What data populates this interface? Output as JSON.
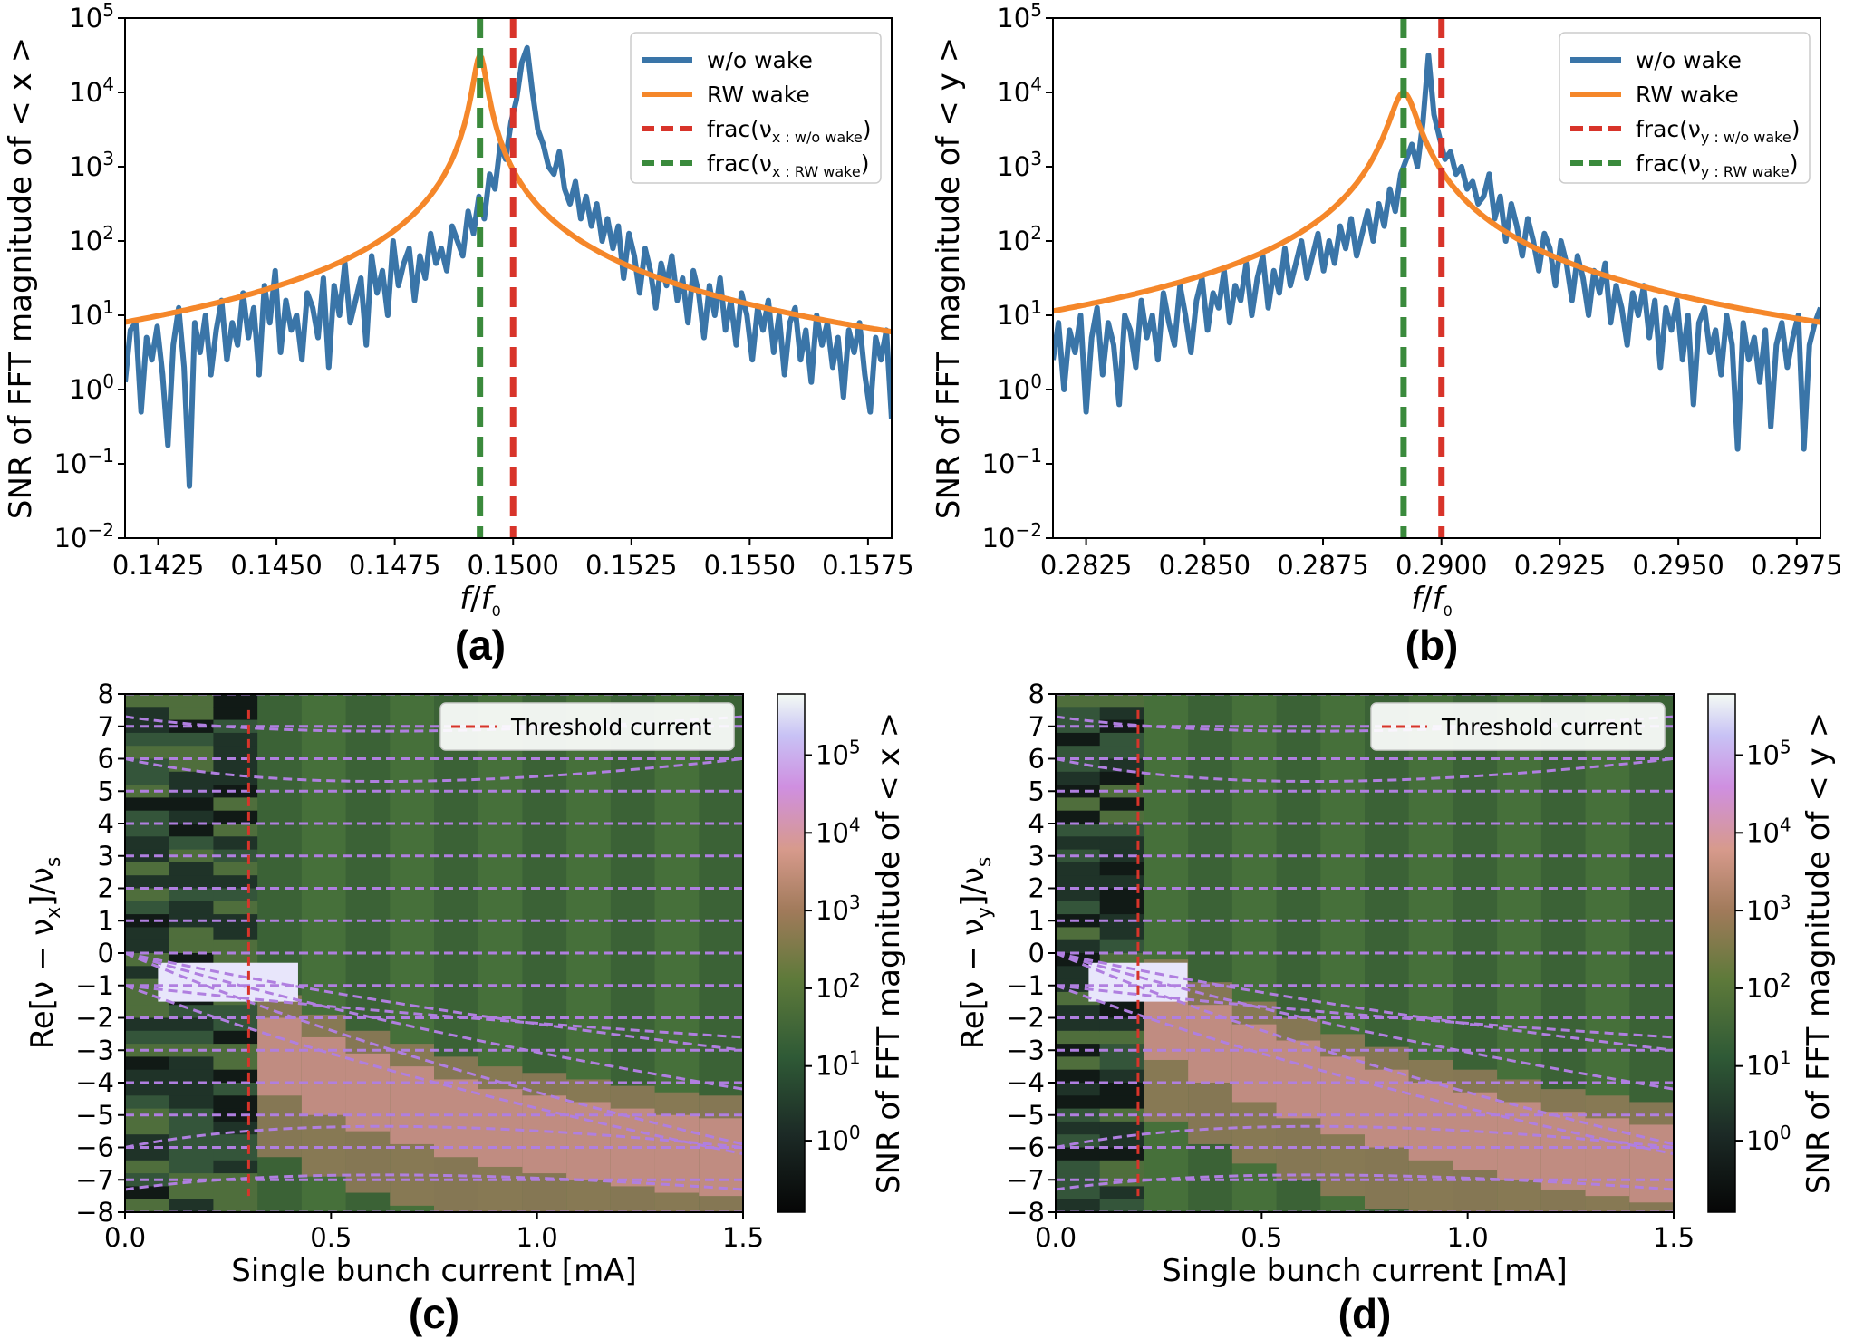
{
  "chart_data": [
    {
      "panel": "a",
      "panel_label": "(a)",
      "type": "line",
      "xlabel_main": "f",
      "xlabel_sub": "0",
      "ylabel": "SNR of FFT magnitude of  < x >",
      "yscale": "log",
      "xlim": [
        0.1418,
        0.158
      ],
      "ylim_exp": [
        -2,
        5
      ],
      "xticks": [
        "0.1425",
        "0.1450",
        "0.1475",
        "0.1500",
        "0.1525",
        "0.1550",
        "0.1575"
      ],
      "xtick_values": [
        0.1425,
        0.145,
        0.1475,
        0.15,
        0.1525,
        0.155,
        0.1575
      ],
      "yticks": [
        "-2",
        "-1",
        "0",
        "1",
        "2",
        "3",
        "4",
        "5"
      ],
      "series": [
        {
          "name": "w/o wake",
          "color": "#3a75a8",
          "peak": 0.15,
          "peak_log": 4.6,
          "noise_log": [
            0.1,
            0.8,
            0.9,
            -0.3,
            0.7,
            0.4,
            0.85,
            0.2,
            -0.75,
            0.6,
            1.1,
            0.3,
            -1.3,
            0.9,
            0.5,
            1.0,
            0.2,
            0.8,
            1.2,
            0.4,
            0.9,
            0.6,
            1.3,
            0.7,
            1.1,
            0.2,
            1.4,
            0.9,
            1.6,
            0.5,
            1.2,
            0.8,
            1.0,
            0.4,
            1.3,
            1.1,
            0.7,
            1.5,
            0.3,
            1.4,
            1.0,
            1.7,
            0.9,
            1.2,
            1.5,
            0.6,
            1.8,
            1.3,
            1.6,
            1.0,
            2.0,
            1.4,
            1.7,
            1.9,
            1.2,
            1.8,
            1.5,
            2.1,
            1.7,
            1.9,
            1.6,
            2.2,
            2.0,
            1.8,
            2.4,
            2.1,
            2.6,
            2.3,
            2.9,
            2.7,
            3.3,
            3.1,
            3.6,
            3.9,
            4.4,
            4.6,
            4.0,
            3.5,
            3.3,
            3.0,
            2.9,
            3.2,
            2.7,
            2.5,
            2.8,
            2.3,
            2.6,
            2.2,
            2.5,
            2.0,
            2.3,
            1.9,
            2.2,
            1.5,
            2.1,
            1.8,
            1.3,
            1.9,
            1.6,
            1.1,
            1.7,
            1.4,
            1.8,
            1.2,
            1.5,
            0.9,
            1.6,
            1.3,
            0.7,
            1.4,
            1.0,
            1.5,
            0.8,
            1.2,
            0.6,
            1.3,
            1.0,
            0.4,
            1.1,
            0.8,
            1.2,
            0.5,
            1.0,
            0.2,
            0.9,
            1.1,
            0.4,
            0.8,
            0.1,
            1.0,
            0.6,
            0.9,
            0.3,
            0.7,
            -0.1,
            0.8,
            0.5,
            0.9,
            0.2,
            -0.3,
            0.7,
            0.4,
            0.8,
            -0.4
          ]
        },
        {
          "name": "RW wake",
          "color": "#f5872a",
          "peak": 0.1493,
          "peak_log": 4.5,
          "width": 0.00012
        }
      ],
      "vlines": [
        {
          "name": "frac(ν_x : w/o wake)",
          "value": 0.15,
          "color": "#d8342a"
        },
        {
          "name": "frac(ν_x : RW wake)",
          "value": 0.1493,
          "color": "#3a8a3c"
        }
      ],
      "legend": [
        {
          "text": "w/o wake",
          "sub": ""
        },
        {
          "text": "RW wake",
          "sub": ""
        },
        {
          "text": "frac(ν",
          "sub": "x : w/o wake",
          "close": ")"
        },
        {
          "text": "frac(ν",
          "sub": "x : RW wake",
          "close": ")"
        }
      ],
      "legend_loc": "upper right"
    },
    {
      "panel": "b",
      "panel_label": "(b)",
      "type": "line",
      "xlabel_main": "f",
      "xlabel_sub": "0",
      "ylabel": "SNR of FFT magnitude of  < y >",
      "yscale": "log",
      "xlim": [
        0.2818,
        0.298
      ],
      "ylim_exp": [
        -2,
        5
      ],
      "xticks": [
        "0.2825",
        "0.2850",
        "0.2875",
        "0.2900",
        "0.2925",
        "0.2950",
        "0.2975"
      ],
      "xtick_values": [
        0.2825,
        0.285,
        0.2875,
        0.29,
        0.2925,
        0.295,
        0.2975
      ],
      "yticks": [
        "-2",
        "-1",
        "0",
        "1",
        "2",
        "3",
        "4",
        "5"
      ],
      "series": [
        {
          "name": "w/o wake",
          "color": "#3a75a8",
          "peak": 0.29,
          "peak_log": 4.5,
          "noise_log": [
            0.4,
            0.9,
            0.0,
            0.8,
            0.5,
            1.0,
            -0.3,
            0.7,
            1.1,
            0.2,
            0.9,
            0.6,
            -0.2,
            1.0,
            0.8,
            0.3,
            1.2,
            0.7,
            1.0,
            0.4,
            1.3,
            0.9,
            0.6,
            1.4,
            1.0,
            0.5,
            1.2,
            1.5,
            0.8,
            1.3,
            1.1,
            1.6,
            0.9,
            1.4,
            1.2,
            1.7,
            1.0,
            1.5,
            1.8,
            1.1,
            1.6,
            1.3,
            1.9,
            1.4,
            1.7,
            2.0,
            1.5,
            1.8,
            2.1,
            1.6,
            2.0,
            1.7,
            2.2,
            1.9,
            2.3,
            1.8,
            2.1,
            2.4,
            2.0,
            2.5,
            2.2,
            2.7,
            2.4,
            2.9,
            3.1,
            3.3,
            3.0,
            3.6,
            4.5,
            3.7,
            3.4,
            3.1,
            3.2,
            2.9,
            3.0,
            2.7,
            2.8,
            2.5,
            2.6,
            2.9,
            2.3,
            2.6,
            2.0,
            2.5,
            2.2,
            1.8,
            2.3,
            2.0,
            1.6,
            2.1,
            1.9,
            1.4,
            2.0,
            1.7,
            1.2,
            1.8,
            1.5,
            1.0,
            1.6,
            1.3,
            1.7,
            0.9,
            1.4,
            1.1,
            0.6,
            1.3,
            1.0,
            1.4,
            0.7,
            1.2,
            0.3,
            1.1,
            0.8,
            1.2,
            0.4,
            1.0,
            -0.2,
            0.9,
            1.1,
            0.5,
            0.8,
            0.2,
            1.0,
            0.6,
            -0.8,
            0.9,
            0.4,
            0.7,
            0.1,
            0.8,
            -0.5,
            0.6,
            0.9,
            0.3,
            0.7,
            1.0,
            -0.8,
            0.6,
            0.9,
            1.1
          ]
        },
        {
          "name": "RW wake",
          "color": "#f5872a",
          "peak": 0.2892,
          "peak_log": 4.0,
          "width": 0.00025
        }
      ],
      "vlines": [
        {
          "name": "frac(ν_y : w/o wake)",
          "value": 0.29,
          "color": "#d8342a"
        },
        {
          "name": "frac(ν_y : RW wake)",
          "value": 0.2892,
          "color": "#3a8a3c"
        }
      ],
      "legend": [
        {
          "text": "w/o wake",
          "sub": ""
        },
        {
          "text": "RW wake",
          "sub": ""
        },
        {
          "text": "frac(ν",
          "sub": "y : w/o wake",
          "close": ")"
        },
        {
          "text": "frac(ν",
          "sub": "y : RW wake",
          "close": ")"
        }
      ],
      "legend_loc": "upper right"
    },
    {
      "panel": "c",
      "panel_label": "(c)",
      "type": "heatmap",
      "xlabel": "Single bunch current [mA]",
      "ylabel_main": "Re[ν − ν",
      "ylabel_sub1": "x",
      "ylabel_mid": "]/ν",
      "ylabel_sub2": "s",
      "xlim": [
        0.0,
        1.5
      ],
      "ylim": [
        -8,
        8
      ],
      "xticks": [
        "0.0",
        "0.5",
        "1.0",
        "1.5"
      ],
      "xtick_values": [
        0.0,
        0.5,
        1.0,
        1.5
      ],
      "yticks": [
        "-8",
        "-7",
        "-6",
        "-5",
        "-4",
        "-3",
        "-2",
        "-1",
        "0",
        "1",
        "2",
        "3",
        "4",
        "5",
        "6",
        "7",
        "8"
      ],
      "threshold_current": 0.3,
      "threshold_label": "Threshold current",
      "colorbar_label": "SNR of FFT magnitude of  < x >",
      "colorbar_ticks_exp": [
        "0",
        "1",
        "2",
        "3",
        "4",
        "5"
      ],
      "mode_drift": [
        0.0,
        -1.0,
        -2.0,
        -2.8,
        -3.4,
        -3.9,
        -4.3,
        -4.7,
        -5.0,
        -5.2,
        -5.4,
        -5.6,
        -5.8,
        -5.9
      ],
      "n_columns": 14
    },
    {
      "panel": "d",
      "panel_label": "(d)",
      "type": "heatmap",
      "xlabel": "Single bunch current [mA]",
      "ylabel_main": "Re[ν − ν",
      "ylabel_sub1": "y",
      "ylabel_mid": "]/ν",
      "ylabel_sub2": "s",
      "xlim": [
        0.0,
        1.5
      ],
      "ylim": [
        -8,
        8
      ],
      "xticks": [
        "0.0",
        "0.5",
        "1.0",
        "1.5"
      ],
      "xtick_values": [
        0.0,
        0.5,
        1.0,
        1.5
      ],
      "yticks": [
        "-8",
        "-7",
        "-6",
        "-5",
        "-4",
        "-3",
        "-2",
        "-1",
        "0",
        "1",
        "2",
        "3",
        "4",
        "5",
        "6",
        "7",
        "8"
      ],
      "threshold_current": 0.2,
      "threshold_label": "Threshold current",
      "colorbar_label": "SNR of FFT magnitude of  < y >",
      "colorbar_ticks_exp": [
        "0",
        "1",
        "2",
        "3",
        "4",
        "5"
      ],
      "mode_drift": [
        0.0,
        -0.9,
        -1.7,
        -2.4,
        -3.0,
        -3.5,
        -4.0,
        -4.4,
        -4.8,
        -5.1,
        -5.4,
        -5.7,
        -5.9,
        -6.1
      ],
      "n_columns": 14
    }
  ]
}
